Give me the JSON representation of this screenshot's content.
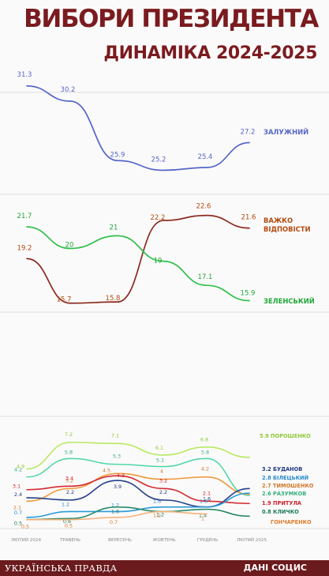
{
  "header": {
    "title": "ВИБОРИ ПРЕЗИДЕНТА",
    "subtitle": "ДИНАМІКА 2024-2025"
  },
  "footer": {
    "source_left": "УКРАЇНСЬКА ПРАВДА",
    "source_right": "ДАНІ СОЦИС"
  },
  "chart_data": {
    "type": "line",
    "x": [
      "ЛЮТИЙ 2024",
      "ТРАВЕНЬ",
      "ВЕРЕСЕНЬ",
      "ЖОВТЕНЬ",
      "ГРУДЕНЬ",
      "ЛЮТИЙ 2025"
    ],
    "grid": true,
    "panels": [
      {
        "series": [
          {
            "name": "ЗАЛУЖНИЙ",
            "color": "#5566c8",
            "values": [
              31.3,
              30.2,
              25.9,
              25.2,
              25.4,
              27.2
            ]
          }
        ]
      },
      {
        "series": [
          {
            "name": "ВАЖКО ВІДПОВІСТИ",
            "color": "#8a2a1e",
            "label_color": "#b34a10",
            "values": [
              19.2,
              15.7,
              15.8,
              22.2,
              22.6,
              21.6
            ]
          },
          {
            "name": "ЗЕЛЕНСЬКИЙ",
            "color": "#2fc04a",
            "label_color": "#1fa83a",
            "values": [
              21.7,
              20,
              21,
              19,
              17.1,
              15.9
            ]
          }
        ]
      },
      {
        "series": [
          {
            "name": "ПОРОШЕНКО",
            "color": "#b6ea62",
            "label_color": "#90c838",
            "values": [
              4.9,
              7.2,
              7.1,
              6.1,
              6.8,
              5.9
            ]
          },
          {
            "name": "РАЗУМКОВ",
            "color": "#55d8a8",
            "label_color": "#34b07c",
            "values": [
              4.2,
              5.8,
              5.3,
              5.1,
              5.8,
              2.6
            ]
          },
          {
            "name": "ТИМОШЕНКО",
            "color": "#ef9a3c",
            "label_color": "#d2782a",
            "values": [
              2.1,
              3.2,
              4.5,
              4,
              4.2,
              2.7
            ]
          },
          {
            "name": "БУДАНОВ",
            "color": "#24408a",
            "label_color": "#203a80",
            "values": [
              2.4,
              2.2,
              3.9,
              2.2,
              1.6,
              3.2
            ]
          },
          {
            "name": "ПРИТУЛА",
            "color": "#d32a32",
            "label_color": "#d0202c",
            "values": [
              3.1,
              3.4,
              4.3,
              3.2,
              2.1,
              1.9
            ]
          },
          {
            "name": "БІЛЕЦЬКИЙ",
            "color": "#2a9ad8",
            "label_color": "#2a8ad0",
            "values": [
              0.7,
              1.2,
              1.2,
              1.6,
              1.6,
              2.8
            ]
          },
          {
            "name": "КЛИЧКО",
            "color": "#2a8a6a",
            "label_color": "#1e7a5a",
            "values": [
              0.5,
              0.6,
              1.6,
              1.2,
              1.4,
              0.8
            ]
          },
          {
            "name": "ГОНЧАРЕНКО",
            "color": "#f5b07a",
            "label_color": "#e07a2a",
            "values": [
              0.5,
              0.5,
              0.7,
              1.2,
              1,
              null
            ]
          }
        ]
      }
    ]
  }
}
